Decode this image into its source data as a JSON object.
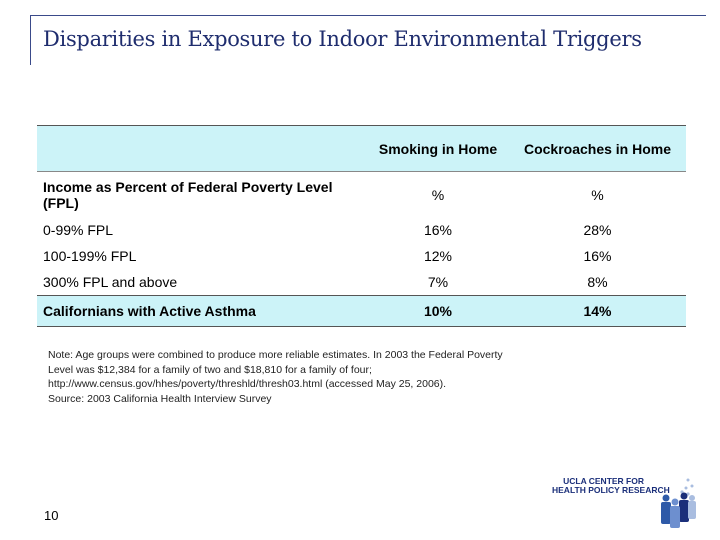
{
  "title": "Disparities in Exposure to Indoor Environmental Triggers",
  "table": {
    "columns": [
      "",
      "Smoking in Home",
      "Cockroaches in Home"
    ],
    "unit_row": {
      "label": "Income as Percent of Federal Poverty Level (FPL)",
      "smoking": "%",
      "cockroaches": "%"
    },
    "rows": [
      {
        "label": "0-99% FPL",
        "smoking": "16%",
        "cockroaches": "28%"
      },
      {
        "label": "100-199% FPL",
        "smoking": "12%",
        "cockroaches": "16%"
      },
      {
        "label": "300% FPL and above",
        "smoking": "7%",
        "cockroaches": "8%"
      }
    ],
    "total": {
      "label": "Californians with Active Asthma",
      "smoking": "10%",
      "cockroaches": "14%"
    }
  },
  "note": [
    "Note: Age groups were combined to produce more reliable estimates. In 2003 the Federal Poverty",
    "Level was $12,384 for a family of two and $18,810 for a family of four;",
    "http://www.census.gov/hhes/poverty/threshld/thresh03.html (accessed May 25, 2006).",
    "Source: 2003 California Health Interview Survey"
  ],
  "page_number": "10",
  "logo": {
    "line1": "UCLA CENTER FOR",
    "line2": "HEALTH POLICY RESEARCH"
  },
  "colors": {
    "title": "#1f2d6e",
    "header_bg": "#ccf3f8"
  }
}
